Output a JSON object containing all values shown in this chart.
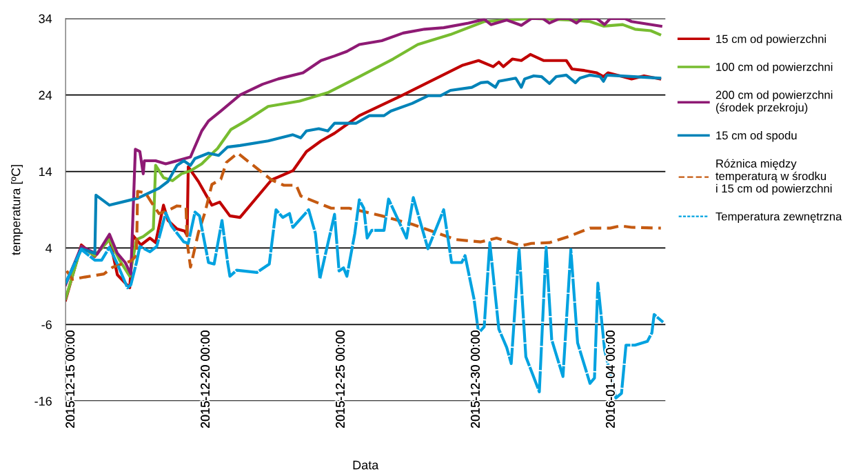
{
  "chart_data": {
    "type": "line",
    "xlabel": "Data",
    "ylabel": "temperatura [ºC]",
    "xlim": [
      "2015-12-14T19:00",
      "2016-01-06T00:00"
    ],
    "xticks": [
      {
        "value": "2015-12-15",
        "label": "2015-12-15 00:00"
      },
      {
        "value": "2015-12-20",
        "label": "2015-12-20 00:00"
      },
      {
        "value": "2015-12-25",
        "label": "2015-12-25 00:00"
      },
      {
        "value": "2015-12-30",
        "label": "2015-12-30 00:00"
      },
      {
        "value": "2016-01-04",
        "label": "2016-01-04 00:00"
      }
    ],
    "ylim": [
      -16,
      34
    ],
    "yticks": [
      -16,
      -6,
      4,
      14,
      24,
      34
    ],
    "grid": "y",
    "legend": "right",
    "marker": "none",
    "series": [
      {
        "name": "15 cm od powierzchni",
        "color": "#c00000",
        "line_style": "solid",
        "x": [
          "2015-12-14T19:00",
          "2015-12-15T09:00",
          "2015-12-15T21:00",
          "2015-12-16T10:00",
          "2015-12-16T17:00",
          "2015-12-17T04:00",
          "2015-12-17T07:00",
          "2015-12-17T14:00",
          "2015-12-17T22:00",
          "2015-12-18T03:00",
          "2015-12-18T10:00",
          "2015-12-18T14:00",
          "2015-12-18T22:00",
          "2015-12-19T05:00",
          "2015-12-19T07:00",
          "2015-12-19T08:00",
          "2015-12-19T17:00",
          "2015-12-20T05:00",
          "2015-12-20T12:00",
          "2015-12-20T21:00",
          "2015-12-21T06:00",
          "2015-12-22T10:00",
          "2015-12-23T05:00",
          "2015-12-23T17:00",
          "2015-12-24T06:00",
          "2015-12-24T18:00",
          "2015-12-25T16:00",
          "2015-12-27T04:00",
          "2015-12-29T12:00",
          "2015-12-30T02:00",
          "2015-12-30T15:00",
          "2015-12-30T20:00",
          "2015-12-31T00:00",
          "2015-12-31T08:00",
          "2015-12-31T16:00",
          "2016-01-01T00:00",
          "2016-01-01T12:00",
          "2016-01-02T08:00",
          "2016-01-02T13:00",
          "2016-01-03T00:00",
          "2016-01-03T11:00",
          "2016-01-03T17:00",
          "2016-01-03T21:00",
          "2016-01-04T10:00",
          "2016-01-04T18:00",
          "2016-01-05T05:00",
          "2016-01-05T19:00"
        ],
        "values": [
          -2.8,
          4.4,
          2.9,
          5.3,
          0.5,
          -1.2,
          5.6,
          4.4,
          5.3,
          4.7,
          9.6,
          7.6,
          6.5,
          6.2,
          5.6,
          14.6,
          12.7,
          9.6,
          10.0,
          8.2,
          8.0,
          12.9,
          14.1,
          16.6,
          18.0,
          19.0,
          21.3,
          23.8,
          27.9,
          28.5,
          27.7,
          28.3,
          27.7,
          28.7,
          28.5,
          29.3,
          28.5,
          28.5,
          27.4,
          27.2,
          26.9,
          26.4,
          26.9,
          26.4,
          26.1,
          26.5,
          26.1
        ]
      },
      {
        "name": "100 cm od powierzchni",
        "color": "#77bc30",
        "line_style": "solid",
        "x": [
          "2015-12-14T19:00",
          "2015-12-15T09:00",
          "2015-12-15T21:00",
          "2015-12-16T10:00",
          "2015-12-16T19:00",
          "2015-12-17T04:00",
          "2015-12-17T10:00",
          "2015-12-17T16:00",
          "2015-12-18T01:00",
          "2015-12-18T03:00",
          "2015-12-18T10:00",
          "2015-12-18T18:00",
          "2015-12-19T02:00",
          "2015-12-19T10:00",
          "2015-12-19T20:00",
          "2015-12-20T07:00",
          "2015-12-20T10:00",
          "2015-12-20T22:00",
          "2015-12-21T11:00",
          "2015-12-22T07:00",
          "2015-12-23T11:00",
          "2015-12-24T12:00",
          "2015-12-25T16:00",
          "2015-12-26T22:00",
          "2015-12-27T20:00",
          "2015-12-29T01:00",
          "2015-12-30T07:00",
          "2016-01-01T01:00",
          "2016-01-02T10:00",
          "2016-01-03T05:00",
          "2016-01-03T17:00",
          "2016-01-04T10:00",
          "2016-01-04T21:00",
          "2016-01-05T11:00",
          "2016-01-05T19:00"
        ],
        "values": [
          -2.6,
          4.2,
          3.0,
          5.1,
          2.4,
          0.3,
          5.1,
          5.5,
          6.5,
          14.8,
          13.2,
          12.8,
          13.7,
          14.1,
          15.0,
          16.6,
          17.0,
          19.5,
          20.6,
          22.5,
          23.2,
          24.3,
          26.4,
          28.7,
          30.6,
          31.9,
          33.6,
          34.0,
          33.8,
          33.6,
          33.0,
          33.2,
          32.6,
          32.4,
          31.9
        ]
      },
      {
        "name": "200 cm od powierzchni\n(środek przekroju)",
        "color": "#8e1a74",
        "line_style": "solid",
        "x": [
          "2015-12-14T19:00",
          "2015-12-15T09:00",
          "2015-12-15T23:00",
          "2015-12-16T10:00",
          "2015-12-16T17:00",
          "2015-12-17T00:00",
          "2015-12-17T05:00",
          "2015-12-17T09:00",
          "2015-12-17T13:00",
          "2015-12-17T16:00",
          "2015-12-17T17:00",
          "2015-12-18T03:00",
          "2015-12-18T12:00",
          "2015-12-18T22:00",
          "2015-12-19T10:00",
          "2015-12-19T12:00",
          "2015-12-19T20:00",
          "2015-12-20T02:00",
          "2015-12-20T13:00",
          "2015-12-21T06:00",
          "2015-12-22T02:00",
          "2015-12-22T16:00",
          "2015-12-23T14:00",
          "2015-12-24T06:00",
          "2015-12-24T18:00",
          "2015-12-25T05:00",
          "2015-12-25T16:00",
          "2015-12-26T12:00",
          "2015-12-27T07:00",
          "2015-12-28T02:00",
          "2015-12-28T19:00",
          "2015-12-29T17:00",
          "2015-12-30T07:00",
          "2015-12-30T13:00",
          "2015-12-31T03:00",
          "2015-12-31T16:00",
          "2016-01-01T01:00",
          "2016-01-01T11:00",
          "2016-01-01T17:00",
          "2016-01-02T02:00",
          "2016-01-02T10:00",
          "2016-01-02T17:00",
          "2016-01-02T22:00",
          "2016-01-03T11:00",
          "2016-01-03T18:00",
          "2016-01-03T23:00",
          "2016-01-04T12:00",
          "2016-01-04T18:00",
          "2016-01-05T20:00"
        ],
        "values": [
          -0.8,
          4.2,
          3.2,
          5.8,
          3.3,
          2.1,
          0.6,
          16.9,
          16.6,
          13.7,
          15.4,
          15.4,
          15.0,
          15.4,
          15.9,
          16.6,
          19.3,
          20.6,
          21.9,
          24.0,
          25.4,
          26.1,
          26.9,
          28.5,
          29.1,
          29.7,
          30.6,
          31.1,
          32.1,
          32.6,
          32.8,
          33.4,
          33.9,
          33.2,
          33.8,
          33.1,
          34.0,
          34.0,
          33.4,
          34.0,
          34.0,
          33.4,
          34.0,
          34.0,
          33.2,
          34.0,
          34.0,
          33.6,
          33.0
        ]
      },
      {
        "name": "15 cm od spodu",
        "color": "#0083b8",
        "line_style": "solid",
        "x": [
          "2015-12-14T19:00",
          "2015-12-15T09:00",
          "2015-12-15T21:00",
          "2015-12-15T22:00",
          "2015-12-16T10:00",
          "2015-12-17T11:00",
          "2015-12-18T06:00",
          "2015-12-18T14:00",
          "2015-12-18T22:00",
          "2015-12-19T04:00",
          "2015-12-19T10:00",
          "2015-12-19T14:00",
          "2015-12-20T02:00",
          "2015-12-20T11:00",
          "2015-12-20T19:00",
          "2015-12-21T06:00",
          "2015-12-22T07:00",
          "2015-12-23T05:00",
          "2015-12-23T12:00",
          "2015-12-23T17:00",
          "2015-12-24T04:00",
          "2015-12-24T12:00",
          "2015-12-24T18:00",
          "2015-12-25T13:00",
          "2015-12-26T01:00",
          "2015-12-26T14:00",
          "2015-12-26T20:00",
          "2015-12-27T15:00",
          "2015-12-28T05:00",
          "2015-12-28T16:00",
          "2015-12-29T01:00",
          "2015-12-29T20:00",
          "2015-12-30T04:00",
          "2015-12-30T10:00",
          "2015-12-30T17:00",
          "2015-12-30T20:00",
          "2015-12-31T11:00",
          "2015-12-31T16:00",
          "2015-12-31T19:00",
          "2016-01-01T03:00",
          "2016-01-01T10:00",
          "2016-01-01T17:00",
          "2016-01-01T23:00",
          "2016-01-02T08:00",
          "2016-01-02T16:00",
          "2016-01-02T20:00",
          "2016-01-03T05:00",
          "2016-01-03T14:00",
          "2016-01-03T17:00",
          "2016-01-03T20:00",
          "2016-01-05T19:00"
        ],
        "values": [
          -0.6,
          3.9,
          3.3,
          10.9,
          9.6,
          10.5,
          11.8,
          12.7,
          14.8,
          15.4,
          14.8,
          15.7,
          16.4,
          16.1,
          17.2,
          17.4,
          18.0,
          18.8,
          18.4,
          19.3,
          19.6,
          19.3,
          20.3,
          20.3,
          21.3,
          21.3,
          21.9,
          22.9,
          23.9,
          23.9,
          24.6,
          25.0,
          25.6,
          25.7,
          25.0,
          25.8,
          26.2,
          25.0,
          26.1,
          26.5,
          26.4,
          25.5,
          26.4,
          26.6,
          25.6,
          26.2,
          26.6,
          26.4,
          25.8,
          26.6,
          26.2
        ]
      },
      {
        "name": "Różnica między\ntemperaturą w środku\ni 15 cm od powierzchni",
        "color": "#c55a11",
        "line_style": "dashed",
        "x": [
          "2015-12-14T20:00",
          "2015-12-15T01:00",
          "2015-12-15T12:00",
          "2015-12-16T05:00",
          "2015-12-16T13:00",
          "2015-12-17T05:00",
          "2015-12-17T10:00",
          "2015-12-17T11:00",
          "2015-12-17T18:00",
          "2015-12-18T00:00",
          "2015-12-18T06:00",
          "2015-12-18T14:00",
          "2015-12-18T22:00",
          "2015-12-19T06:00",
          "2015-12-19T07:00",
          "2015-12-19T10:00",
          "2015-12-19T17:00",
          "2015-12-19T23:00",
          "2015-12-20T05:00",
          "2015-12-20T13:00",
          "2015-12-20T18:00",
          "2015-12-21T04:00",
          "2015-12-22T10:00",
          "2015-12-22T21:00",
          "2015-12-23T08:00",
          "2015-12-23T12:00",
          "2015-12-24T15:00",
          "2015-12-25T07:00",
          "2015-12-26T12:00",
          "2015-12-27T15:00",
          "2015-12-29T06:00",
          "2015-12-30T04:00",
          "2015-12-30T18:00",
          "2015-12-31T16:00",
          "2016-01-01T01:00",
          "2016-01-01T17:00",
          "2016-01-02T10:00",
          "2016-01-03T05:00",
          "2016-01-03T23:00",
          "2016-01-04T08:00",
          "2016-01-04T18:00",
          "2016-01-05T20:00"
        ],
        "values": [
          1.0,
          -0.1,
          0.2,
          0.6,
          1.5,
          2.3,
          3.0,
          11.4,
          11.2,
          9.8,
          8.5,
          8.9,
          9.5,
          9.4,
          4.8,
          1.5,
          6.0,
          8.7,
          12.3,
          13.0,
          15.2,
          16.4,
          12.9,
          12.2,
          12.2,
          10.8,
          9.2,
          9.2,
          8.2,
          7.1,
          5.1,
          4.8,
          5.3,
          4.3,
          4.6,
          4.7,
          5.5,
          6.6,
          6.6,
          6.9,
          6.7,
          6.6
        ]
      },
      {
        "name": "Temperatura zewnętrzna",
        "color": "#00a2e0",
        "line_style": "dotted",
        "x": [
          "2015-12-14T19:00",
          "2015-12-15T09:00",
          "2015-12-15T21:00",
          "2015-12-16T03:00",
          "2015-12-16T10:00",
          "2015-12-16T17:00",
          "2015-12-17T02:00",
          "2015-12-17T05:00",
          "2015-12-17T10:00",
          "2015-12-17T13:00",
          "2015-12-17T22:00",
          "2015-12-18T04:00",
          "2015-12-18T12:00",
          "2015-12-18T17:00",
          "2015-12-19T04:00",
          "2015-12-19T08:00",
          "2015-12-19T14:00",
          "2015-12-19T18:00",
          "2015-12-20T02:00",
          "2015-12-20T07:00",
          "2015-12-20T14:00",
          "2015-12-20T19:00",
          "2015-12-20T21:00",
          "2015-12-21T03:00",
          "2015-12-21T21:00",
          "2015-12-22T08:00",
          "2015-12-22T14:00",
          "2015-12-22T20:00",
          "2015-12-23T02:00",
          "2015-12-23T05:00",
          "2015-12-23T19:00",
          "2015-12-24T01:00",
          "2015-12-24T05:00",
          "2015-12-24T18:00",
          "2015-12-24T22:00",
          "2015-12-25T02:00",
          "2015-12-25T05:00",
          "2015-12-25T12:00",
          "2015-12-25T16:00",
          "2015-12-25T20:00",
          "2015-12-25T23:00",
          "2015-12-26T03:00",
          "2015-12-26T14:00",
          "2015-12-26T18:00",
          "2015-12-27T10:00",
          "2015-12-27T16:00",
          "2015-12-28T05:00",
          "2015-12-28T19:00",
          "2015-12-29T02:00",
          "2015-12-29T11:00",
          "2015-12-29T14:00",
          "2015-12-29T22:00",
          "2015-12-30T02:00",
          "2015-12-30T07:00",
          "2015-12-30T12:00",
          "2015-12-30T20:00",
          "2015-12-31T03:00",
          "2015-12-31T07:00",
          "2015-12-31T14:00",
          "2015-12-31T20:00",
          "2016-01-01T08:00",
          "2016-01-01T14:00",
          "2016-01-01T19:00",
          "2016-01-02T05:00",
          "2016-01-02T12:00",
          "2016-01-02T18:00",
          "2016-01-03T05:00",
          "2016-01-03T09:00",
          "2016-01-03T12:00",
          "2016-01-03T18:00",
          "2016-01-04T04:00",
          "2016-01-04T09:00",
          "2016-01-04T13:00",
          "2016-01-04T21:00",
          "2016-01-05T08:00",
          "2016-01-05T12:00",
          "2016-01-05T14:00",
          "2016-01-05T22:00"
        ],
        "values": [
          -0.6,
          3.8,
          2.4,
          2.4,
          4.1,
          1.9,
          -1.2,
          -0.8,
          2.1,
          4.2,
          3.5,
          4.2,
          8.6,
          6.9,
          4.8,
          4.6,
          8.7,
          8.2,
          2.1,
          1.9,
          7.6,
          2.1,
          0.3,
          1.1,
          0.8,
          1.9,
          9.0,
          8.0,
          8.5,
          6.7,
          9.0,
          5.9,
          0.0,
          8.4,
          1.0,
          1.4,
          0.3,
          5.9,
          10.3,
          9.2,
          5.3,
          6.3,
          6.3,
          10.4,
          5.3,
          10.6,
          3.9,
          9.0,
          2.1,
          2.1,
          3.0,
          -2.7,
          -7.1,
          -6.3,
          4.7,
          -6.6,
          -9.0,
          -11.1,
          3.9,
          -10.2,
          -14.8,
          4.1,
          -8.0,
          -12.8,
          3.8,
          -8.4,
          -13.7,
          -13.0,
          -0.6,
          -9.3,
          -15.6,
          -15.0,
          -8.7,
          -8.7,
          -8.2,
          -7.1,
          -4.7,
          -5.7
        ]
      }
    ]
  }
}
